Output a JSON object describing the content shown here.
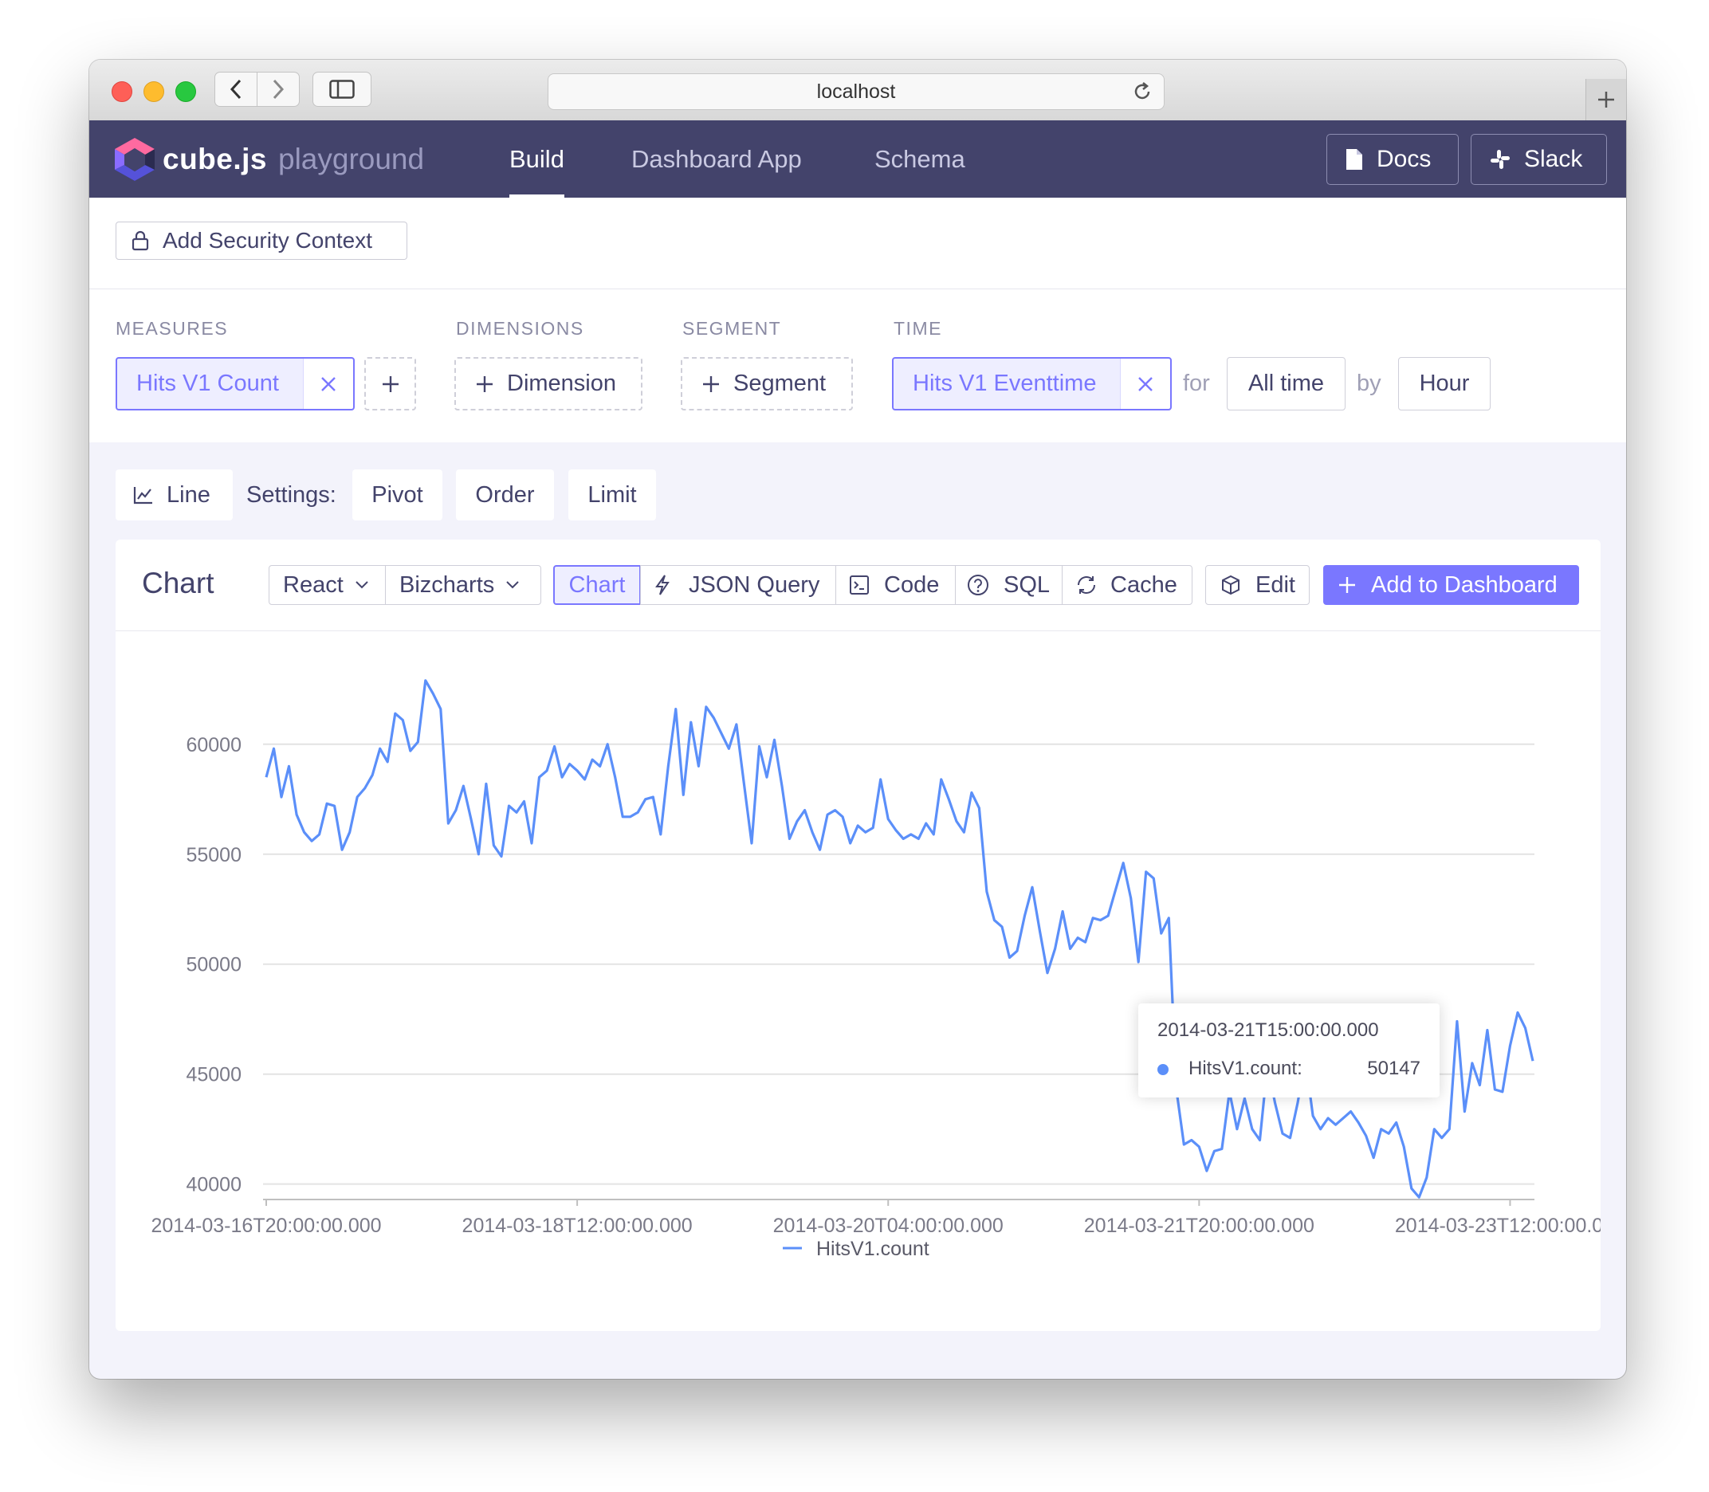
{
  "browser": {
    "address": "localhost"
  },
  "app": {
    "logo_text": "cube.js",
    "logo_sub": "playground",
    "nav": [
      {
        "label": "Build",
        "active": true
      },
      {
        "label": "Dashboard App",
        "active": false
      },
      {
        "label": "Schema",
        "active": false
      }
    ],
    "docs_label": "Docs",
    "slack_label": "Slack"
  },
  "security": {
    "label": "Add Security Context"
  },
  "query": {
    "measures_label": "MEASURES",
    "measure_value": "Hits V1 Count",
    "dimensions_label": "DIMENSIONS",
    "dimension_add": "Dimension",
    "segment_label": "SEGMENT",
    "segment_add": "Segment",
    "time_label": "TIME",
    "time_value": "Hits V1 Eventtime",
    "for_word": "for",
    "range_value": "All time",
    "by_word": "by",
    "granularity_value": "Hour"
  },
  "settings": {
    "chart_type": "Line",
    "settings_label": "Settings:",
    "pivot": "Pivot",
    "order": "Order",
    "limit": "Limit"
  },
  "card": {
    "title": "Chart",
    "framework": "React",
    "library": "Bizcharts",
    "tab_chart": "Chart",
    "tab_json": "JSON Query",
    "tab_code": "Code",
    "tab_sql": "SQL",
    "tab_cache": "Cache",
    "edit": "Edit",
    "add_dashboard": "Add to Dashboard"
  },
  "tooltip": {
    "title": "2014-03-21T15:00:00.000",
    "series": "HitsV1.count:",
    "value": "50147"
  },
  "colors": {
    "accent": "#7a77ff",
    "header": "#43436b",
    "line": "#5b8ff9"
  },
  "chart_data": {
    "type": "line",
    "x_labels": [
      "2014-03-16T20:00:00.000",
      "2014-03-18T12:00:00.000",
      "2014-03-20T04:00:00.000",
      "2014-03-21T20:00:00.000",
      "2014-03-23T12:00:00.000"
    ],
    "yticks": [
      40000,
      45000,
      50000,
      55000,
      60000
    ],
    "ylim": [
      39300,
      63000
    ],
    "legend": "HitsV1.count",
    "series": [
      {
        "name": "HitsV1.count",
        "values": [
          58500,
          59800,
          57600,
          59000,
          56800,
          56000,
          55600,
          55900,
          57300,
          57200,
          55200,
          56000,
          57600,
          58000,
          58600,
          59800,
          59200,
          61400,
          61100,
          59700,
          60100,
          62900,
          62300,
          61600,
          56400,
          57000,
          58100,
          56600,
          55000,
          58200,
          55400,
          54900,
          57200,
          56900,
          57400,
          55500,
          58500,
          58800,
          59900,
          58500,
          59100,
          58800,
          58400,
          59300,
          59000,
          60000,
          58500,
          56700,
          56700,
          56900,
          57500,
          57600,
          55900,
          59000,
          61600,
          57700,
          61000,
          59000,
          61700,
          61200,
          60500,
          59800,
          60900,
          58200,
          55500,
          59900,
          58500,
          60200,
          58100,
          55700,
          56500,
          57000,
          56000,
          55200,
          56800,
          57000,
          56700,
          55500,
          56300,
          56000,
          56200,
          58400,
          56600,
          56100,
          55700,
          55900,
          55700,
          56400,
          55900,
          58400,
          57500,
          56500,
          56000,
          57800,
          57100,
          53300,
          52000,
          51700,
          50300,
          50600,
          52200,
          53500,
          51500,
          49600,
          50700,
          52400,
          50700,
          51200,
          51000,
          52100,
          52000,
          52200,
          53400,
          54600,
          53000,
          50100,
          54200,
          53900,
          51400,
          52100,
          44300,
          41800,
          42000,
          41700,
          40600,
          41500,
          41600,
          44200,
          42500,
          43900,
          42500,
          42000,
          45400,
          43700,
          42300,
          42100,
          43700,
          45700,
          43100,
          42500,
          43000,
          42700,
          43000,
          43300,
          42800,
          42200,
          41200,
          42500,
          42300,
          42800,
          41700,
          39800,
          39400,
          40300,
          42500,
          42100,
          42500,
          47400,
          43300,
          45500,
          44500,
          47000,
          44300,
          44200,
          46300,
          47800,
          47100,
          45600
        ]
      }
    ]
  }
}
